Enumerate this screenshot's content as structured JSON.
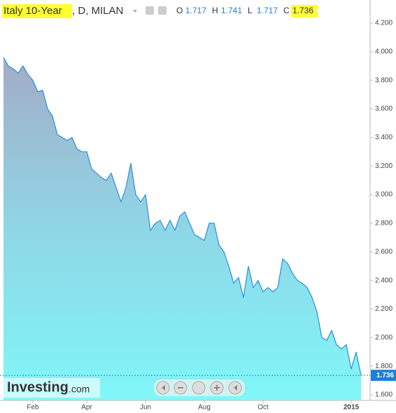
{
  "chart_data": {
    "type": "area",
    "title": "Italy 10-Year",
    "subtitle": ", D, MILAN",
    "ohlc": [
      {
        "label": "O",
        "value": 1.717
      },
      {
        "label": "H",
        "value": 1.741
      },
      {
        "label": "L",
        "value": 1.717
      },
      {
        "label": "C",
        "value": 1.736
      }
    ],
    "brand": "Investing",
    "brand_suffix": ".com",
    "categories": [
      null,
      null,
      null,
      null,
      null,
      null,
      "Feb",
      null,
      null,
      null,
      null,
      null,
      null,
      null,
      null,
      null,
      null,
      "Apr",
      null,
      null,
      null,
      null,
      null,
      null,
      null,
      null,
      null,
      null,
      null,
      "Jun",
      null,
      null,
      null,
      null,
      null,
      null,
      null,
      null,
      null,
      null,
      null,
      "Aug",
      null,
      null,
      null,
      null,
      null,
      null,
      null,
      null,
      null,
      null,
      null,
      "Oct",
      null,
      null,
      null,
      null,
      null,
      null,
      null,
      null,
      null,
      null,
      null,
      null,
      null,
      null,
      null,
      null,
      null,
      "2015",
      null,
      null
    ],
    "series": [
      {
        "name": "Italy 10-Year",
        "color": "#2b8fd8",
        "values": [
          3.96,
          3.9,
          3.88,
          3.85,
          3.9,
          3.84,
          3.8,
          3.72,
          3.73,
          3.6,
          3.55,
          3.42,
          3.4,
          3.38,
          3.4,
          3.32,
          3.3,
          3.3,
          3.18,
          3.15,
          3.12,
          3.1,
          3.15,
          3.05,
          2.95,
          3.05,
          3.22,
          3.0,
          2.95,
          3.0,
          2.75,
          2.8,
          2.82,
          2.75,
          2.82,
          2.75,
          2.85,
          2.88,
          2.8,
          2.72,
          2.7,
          2.68,
          2.8,
          2.8,
          2.65,
          2.6,
          2.5,
          2.38,
          2.42,
          2.28,
          2.5,
          2.35,
          2.4,
          2.32,
          2.35,
          2.32,
          2.35,
          2.55,
          2.52,
          2.45,
          2.4,
          2.38,
          2.35,
          2.28,
          2.18,
          2.0,
          1.98,
          2.05,
          1.95,
          1.92,
          1.95,
          1.78,
          1.9,
          1.736
        ]
      }
    ],
    "ylim": [
      1.6,
      4.2
    ],
    "yticks": [
      {
        "value": 1.6,
        "label": "1.600"
      },
      {
        "value": 1.8,
        "label": "1.800"
      },
      {
        "value": 2.0,
        "label": "2.000"
      },
      {
        "value": 2.2,
        "label": "2.200"
      },
      {
        "value": 2.4,
        "label": "2.400"
      },
      {
        "value": 2.6,
        "label": "2.600"
      },
      {
        "value": 2.8,
        "label": "2.800"
      },
      {
        "value": 3.0,
        "label": "3.000"
      },
      {
        "value": 3.2,
        "label": "3.200"
      },
      {
        "value": 3.4,
        "label": "3.400"
      },
      {
        "value": 3.6,
        "label": "3.600"
      },
      {
        "value": 3.8,
        "label": "3.800"
      },
      {
        "value": 4.0,
        "label": "4.000"
      },
      {
        "value": 4.2,
        "label": "4.200"
      }
    ]
  }
}
